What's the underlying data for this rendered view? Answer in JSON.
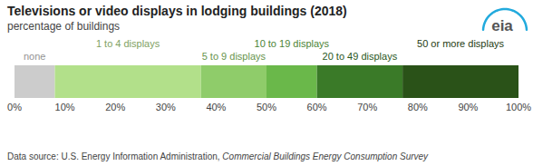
{
  "chart_data": {
    "type": "bar",
    "orientation": "horizontal",
    "stacked": true,
    "title": "Televisions or video displays in lodging buildings (2018)",
    "subtitle": "percentage of buildings",
    "categories": [
      "none",
      "1 to 4 displays",
      "5 to 9 displays",
      "10 to 19 displays",
      "20 to 49 displays",
      "50 or more displays"
    ],
    "values": [
      8,
      29,
      13,
      10,
      17,
      23
    ],
    "colors": [
      "#cccccc",
      "#b2e08a",
      "#8fcc6a",
      "#6ab84a",
      "#3a7a28",
      "#2a5218"
    ],
    "xlim": [
      0,
      100
    ],
    "xticks": [
      {
        "value": 0,
        "label": "0%"
      },
      {
        "value": 10,
        "label": "10%"
      },
      {
        "value": 20,
        "label": "20%"
      },
      {
        "value": 30,
        "label": "30%"
      },
      {
        "value": 40,
        "label": "40%"
      },
      {
        "value": 50,
        "label": "50%"
      },
      {
        "value": 60,
        "label": "60%"
      },
      {
        "value": 70,
        "label": "70%"
      },
      {
        "value": 80,
        "label": "80%"
      },
      {
        "value": 90,
        "label": "90%"
      },
      {
        "value": 100,
        "label": "100%"
      }
    ],
    "grid": false,
    "annotations": [
      "Data source: U.S. Energy Information Administration, ",
      "Commercial Buildings Energy Consumption Survey",
      "eia"
    ]
  }
}
